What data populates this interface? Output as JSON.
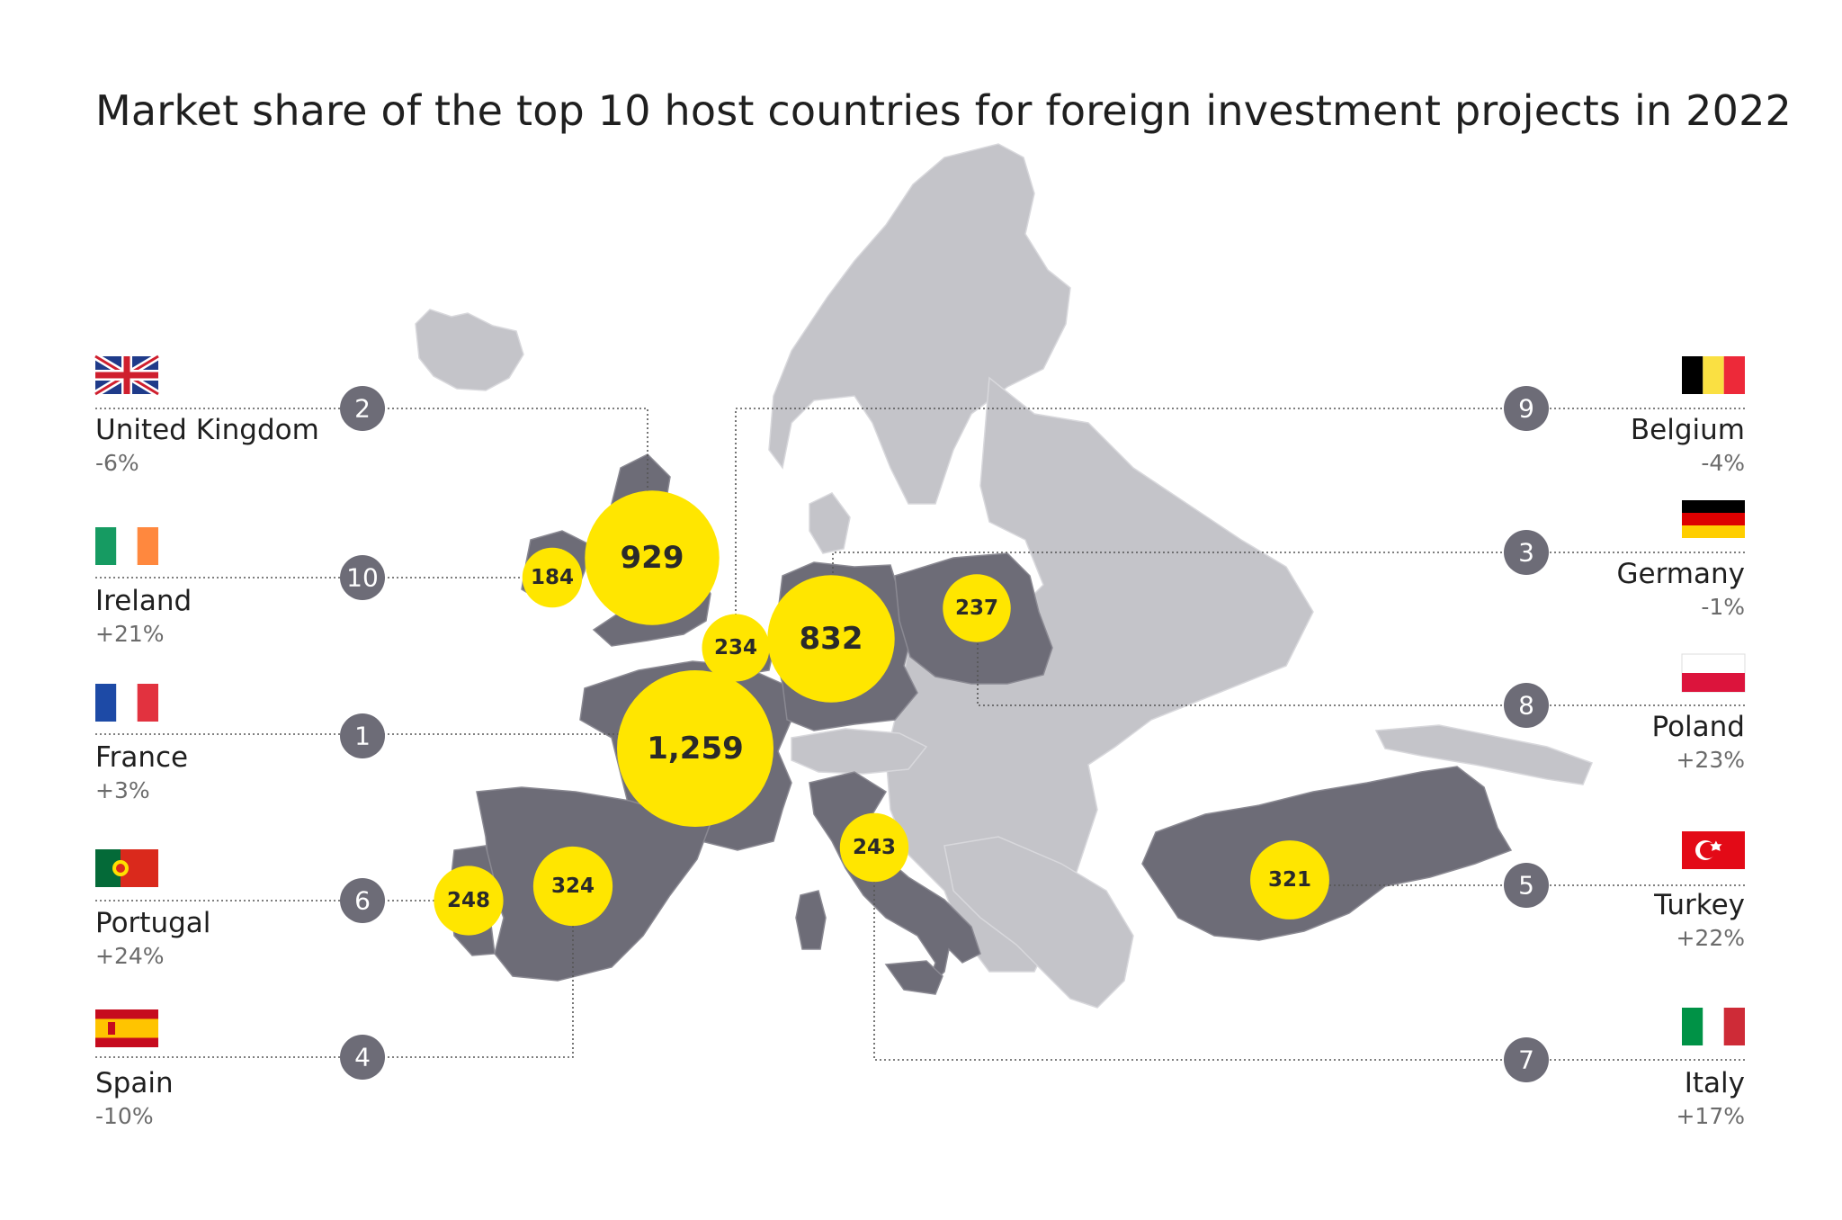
{
  "title": "Market share of the top 10 host countries for foreign investment projects in 2022",
  "colors": {
    "highlight": "#6d6c77",
    "other_land": "#c4c4c9",
    "bubble": "#ffe600",
    "rank_badge": "#6d6c77"
  },
  "countries": [
    {
      "key": "uk",
      "name": "United Kingdom",
      "change": "-6%",
      "rank": "2",
      "projects": 929,
      "projects_label": "929",
      "flag": "uk-flag-icon"
    },
    {
      "key": "ie",
      "name": "Ireland",
      "change": "+21%",
      "rank": "10",
      "projects": 184,
      "projects_label": "184",
      "flag": "ireland-flag-icon"
    },
    {
      "key": "fr",
      "name": "France",
      "change": "+3%",
      "rank": "1",
      "projects": 1259,
      "projects_label": "1,259",
      "flag": "france-flag-icon"
    },
    {
      "key": "pt",
      "name": "Portugal",
      "change": "+24%",
      "rank": "6",
      "projects": 248,
      "projects_label": "248",
      "flag": "portugal-flag-icon"
    },
    {
      "key": "es",
      "name": "Spain",
      "change": "-10%",
      "rank": "4",
      "projects": 324,
      "projects_label": "324",
      "flag": "spain-flag-icon"
    },
    {
      "key": "be",
      "name": "Belgium",
      "change": "-4%",
      "rank": "9",
      "projects": 234,
      "projects_label": "234",
      "flag": "belgium-flag-icon"
    },
    {
      "key": "de",
      "name": "Germany",
      "change": "-1%",
      "rank": "3",
      "projects": 832,
      "projects_label": "832",
      "flag": "germany-flag-icon"
    },
    {
      "key": "pl",
      "name": "Poland",
      "change": "+23%",
      "rank": "8",
      "projects": 237,
      "projects_label": "237",
      "flag": "poland-flag-icon"
    },
    {
      "key": "tr",
      "name": "Turkey",
      "change": "+22%",
      "rank": "5",
      "projects": 321,
      "projects_label": "321",
      "flag": "turkey-flag-icon"
    },
    {
      "key": "it",
      "name": "Italy",
      "change": "+17%",
      "rank": "7",
      "projects": 243,
      "projects_label": "243",
      "flag": "italy-flag-icon"
    }
  ]
}
